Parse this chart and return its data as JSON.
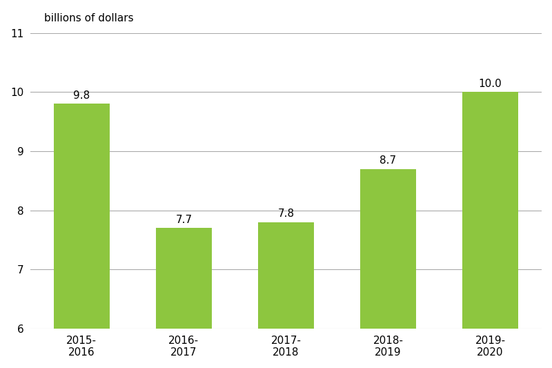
{
  "categories": [
    "2015-\n2016",
    "2016-\n2017",
    "2017-\n2018",
    "2018-\n2019",
    "2019-\n2020"
  ],
  "values": [
    9.8,
    7.7,
    7.8,
    8.7,
    10.0
  ],
  "bar_color": "#8dc63f",
  "ylabel": "billions of dollars",
  "ylim": [
    6,
    11
  ],
  "ybase": 6,
  "yticks": [
    6,
    7,
    8,
    9,
    10,
    11
  ],
  "value_labels": [
    "9.8",
    "7.7",
    "7.8",
    "8.7",
    "10.0"
  ],
  "bar_width": 0.55,
  "background_color": "#ffffff",
  "grid_color": "#aaaaaa",
  "label_fontsize": 11,
  "tick_fontsize": 11,
  "annotation_fontsize": 11
}
